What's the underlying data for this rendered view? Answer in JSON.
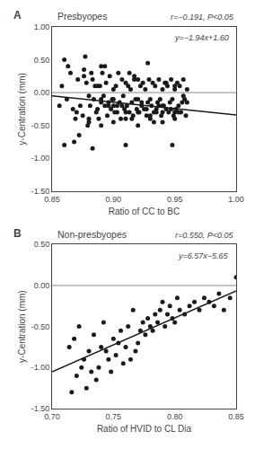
{
  "chart_data": [
    {
      "type": "scatter",
      "title": "Presbyopes",
      "annotations": [
        "A",
        "r=−0.191, P<0.05",
        "y=−1.94x+1.60"
      ],
      "xlabel": "Ratio of CC to BC",
      "ylabel": "y-Centration (mm)",
      "xlim": [
        0.85,
        1.0
      ],
      "ylim": [
        -1.5,
        1.0
      ],
      "xticks": [
        0.85,
        {
          "value": 0.9,
          "label": "0.90"
        },
        0.95,
        {
          "value": 1.0,
          "label": "1.00"
        }
      ],
      "yticks": [
        {
          "value": -1.5,
          "label": "-1.50"
        },
        {
          "value": -1.0,
          "label": "-1.00"
        },
        {
          "value": -0.5,
          "label": "-0.50"
        },
        {
          "value": 0.0,
          "label": "0.00"
        },
        {
          "value": 0.5,
          "label": "0.50"
        },
        {
          "value": 1.0,
          "label": "1.00"
        }
      ],
      "grid": false,
      "series": [
        {
          "type": "scatter",
          "color": "#1a1a1a",
          "x": [
            0.856,
            0.858,
            0.86,
            0.862,
            0.865,
            0.867,
            0.869,
            0.871,
            0.873,
            0.875,
            0.876,
            0.877,
            0.878,
            0.879,
            0.88,
            0.881,
            0.882,
            0.883,
            0.884,
            0.885,
            0.886,
            0.887,
            0.888,
            0.889,
            0.89,
            0.89,
            0.891,
            0.892,
            0.893,
            0.894,
            0.895,
            0.896,
            0.897,
            0.898,
            0.899,
            0.9,
            0.9,
            0.901,
            0.902,
            0.903,
            0.904,
            0.905,
            0.906,
            0.907,
            0.908,
            0.909,
            0.91,
            0.91,
            0.911,
            0.912,
            0.913,
            0.914,
            0.915,
            0.915,
            0.916,
            0.917,
            0.918,
            0.919,
            0.92,
            0.92,
            0.921,
            0.922,
            0.923,
            0.924,
            0.925,
            0.926,
            0.927,
            0.928,
            0.928,
            0.929,
            0.93,
            0.931,
            0.932,
            0.933,
            0.934,
            0.935,
            0.935,
            0.936,
            0.937,
            0.938,
            0.939,
            0.94,
            0.94,
            0.941,
            0.942,
            0.943,
            0.944,
            0.945,
            0.946,
            0.947,
            0.948,
            0.948,
            0.949,
            0.95,
            0.95,
            0.951,
            0.952,
            0.953,
            0.954,
            0.955,
            0.956,
            0.957,
            0.958,
            0.959,
            0.96,
            0.863,
            0.868,
            0.872,
            0.876,
            0.88,
            0.883,
            0.887,
            0.89,
            0.893,
            0.896,
            0.9,
            0.903,
            0.907,
            0.91,
            0.913,
            0.917,
            0.92,
            0.923,
            0.927,
            0.93,
            0.933,
            0.937,
            0.94,
            0.943,
            0.947,
            0.95,
            0.953,
            0.957,
            0.86,
            0.87,
            0.88,
            0.89,
            0.9,
            0.91,
            0.92,
            0.93,
            0.94,
            0.95,
            0.96
          ],
          "values": [
            -0.2,
            0.1,
            0.5,
            -0.1,
            0.3,
            -0.25,
            -0.4,
            0.2,
            -0.2,
            -0.35,
            0.25,
            0.55,
            0.15,
            -0.5,
            -0.05,
            -0.2,
            0.3,
            0.2,
            -0.1,
            0.1,
            -0.3,
            -0.25,
            -0.4,
            0.1,
            -0.1,
            0.4,
            0.3,
            -0.05,
            -0.2,
            0.15,
            -0.35,
            -0.15,
            0.25,
            -0.25,
            -0.1,
            0.05,
            -0.45,
            -0.3,
            0.1,
            -0.2,
            0.3,
            -0.15,
            -0.4,
            0.2,
            -0.05,
            -0.25,
            0.15,
            -0.8,
            -0.2,
            0.1,
            -0.3,
            0.05,
            -0.15,
            -0.4,
            -0.35,
            0.25,
            -0.1,
            -0.25,
            0.2,
            -0.3,
            -0.3,
            0.1,
            -0.2,
            0.15,
            -0.25,
            0.05,
            -0.35,
            -0.15,
            0.45,
            0.2,
            -0.1,
            -0.2,
            0.15,
            -0.3,
            0.1,
            -0.25,
            -0.3,
            -0.15,
            0.2,
            -0.1,
            -0.35,
            0.05,
            -0.45,
            -0.2,
            0.15,
            -0.25,
            0.1,
            -0.3,
            -0.15,
            0.2,
            -0.1,
            -0.8,
            -0.35,
            0.05,
            -0.4,
            -0.25,
            0.15,
            -0.2,
            0.1,
            -0.3,
            -0.15,
            0.2,
            -0.1,
            -0.35,
            0.05,
            0.4,
            -0.75,
            -0.65,
            0.35,
            -0.45,
            -0.85,
            0.1,
            -0.15,
            0.4,
            -0.2,
            -0.1,
            -0.3,
            -0.2,
            -0.4,
            0.3,
            0.2,
            -0.5,
            -0.15,
            -0.25,
            -0.35,
            -0.45,
            -0.2,
            -0.3,
            0.15,
            -0.25,
            0.1,
            -0.3,
            -0.05,
            -0.8,
            -0.3,
            -0.4,
            -0.5,
            -0.2,
            -0.3,
            -0.1,
            -0.4,
            -0.2,
            -0.3,
            -0.15
          ]
        },
        {
          "type": "line",
          "color": "#1a1a1a",
          "x": [
            0.85,
            1.0
          ],
          "values": [
            -0.049,
            -0.34
          ]
        },
        {
          "type": "line",
          "color": "#888888",
          "x": [
            0.85,
            1.0
          ],
          "values": [
            0,
            0
          ]
        }
      ]
    },
    {
      "type": "scatter",
      "title": "Non-presbyopes",
      "annotations": [
        "B",
        "r=0.550, P<0.05",
        "y=6.57x−5.65"
      ],
      "xlabel": "Ratio of HVID to CL Dia",
      "ylabel": "y-Centration (mm)",
      "xlim": [
        0.7,
        0.85
      ],
      "ylim": [
        -1.5,
        0.5
      ],
      "xticks": [
        {
          "value": 0.7,
          "label": "0.70"
        },
        0.75,
        {
          "value": 0.8,
          "label": "0.80"
        },
        0.85
      ],
      "yticks": [
        {
          "value": -1.5,
          "label": "-1.50"
        },
        {
          "value": -1.0,
          "label": "-1.00"
        },
        {
          "value": -0.5,
          "label": "-0.50"
        },
        {
          "value": 0.0,
          "label": "0.00"
        },
        {
          "value": 0.5,
          "label": "0.50"
        }
      ],
      "grid": false,
      "series": [
        {
          "type": "scatter",
          "color": "#1a1a1a",
          "x": [
            0.714,
            0.716,
            0.718,
            0.72,
            0.722,
            0.724,
            0.726,
            0.728,
            0.73,
            0.732,
            0.734,
            0.736,
            0.738,
            0.74,
            0.742,
            0.744,
            0.746,
            0.748,
            0.75,
            0.752,
            0.754,
            0.756,
            0.758,
            0.76,
            0.762,
            0.764,
            0.766,
            0.768,
            0.77,
            0.772,
            0.774,
            0.776,
            0.778,
            0.78,
            0.782,
            0.784,
            0.786,
            0.788,
            0.79,
            0.792,
            0.794,
            0.796,
            0.798,
            0.8,
            0.802,
            0.804,
            0.808,
            0.812,
            0.816,
            0.82,
            0.824,
            0.828,
            0.832,
            0.836,
            0.84,
            0.845,
            0.85
          ],
          "values": [
            -0.75,
            -1.3,
            -0.65,
            -1.1,
            -0.5,
            -1.0,
            -0.9,
            -1.25,
            -0.8,
            -1.05,
            -0.6,
            -1.15,
            -1.0,
            -0.75,
            -0.45,
            -0.8,
            -0.9,
            -1.05,
            -0.65,
            -0.85,
            -0.7,
            -0.55,
            -0.95,
            -0.75,
            -0.5,
            -0.9,
            -0.3,
            -0.8,
            -0.7,
            -0.55,
            -0.45,
            -0.6,
            -0.4,
            -0.5,
            -0.55,
            -0.35,
            -0.45,
            -0.3,
            -0.2,
            -0.5,
            -0.35,
            -0.25,
            -0.4,
            -0.45,
            -0.15,
            -0.3,
            -0.35,
            -0.25,
            -0.2,
            -0.3,
            -0.15,
            -0.2,
            -0.25,
            -0.1,
            -0.3,
            -0.15,
            0.1
          ]
        },
        {
          "type": "line",
          "color": "#1a1a1a",
          "x": [
            0.7,
            0.85
          ],
          "values": [
            -1.051,
            -0.0655
          ]
        },
        {
          "type": "line",
          "color": "#888888",
          "x": [
            0.7,
            0.85
          ],
          "values": [
            0,
            0
          ]
        }
      ]
    }
  ]
}
